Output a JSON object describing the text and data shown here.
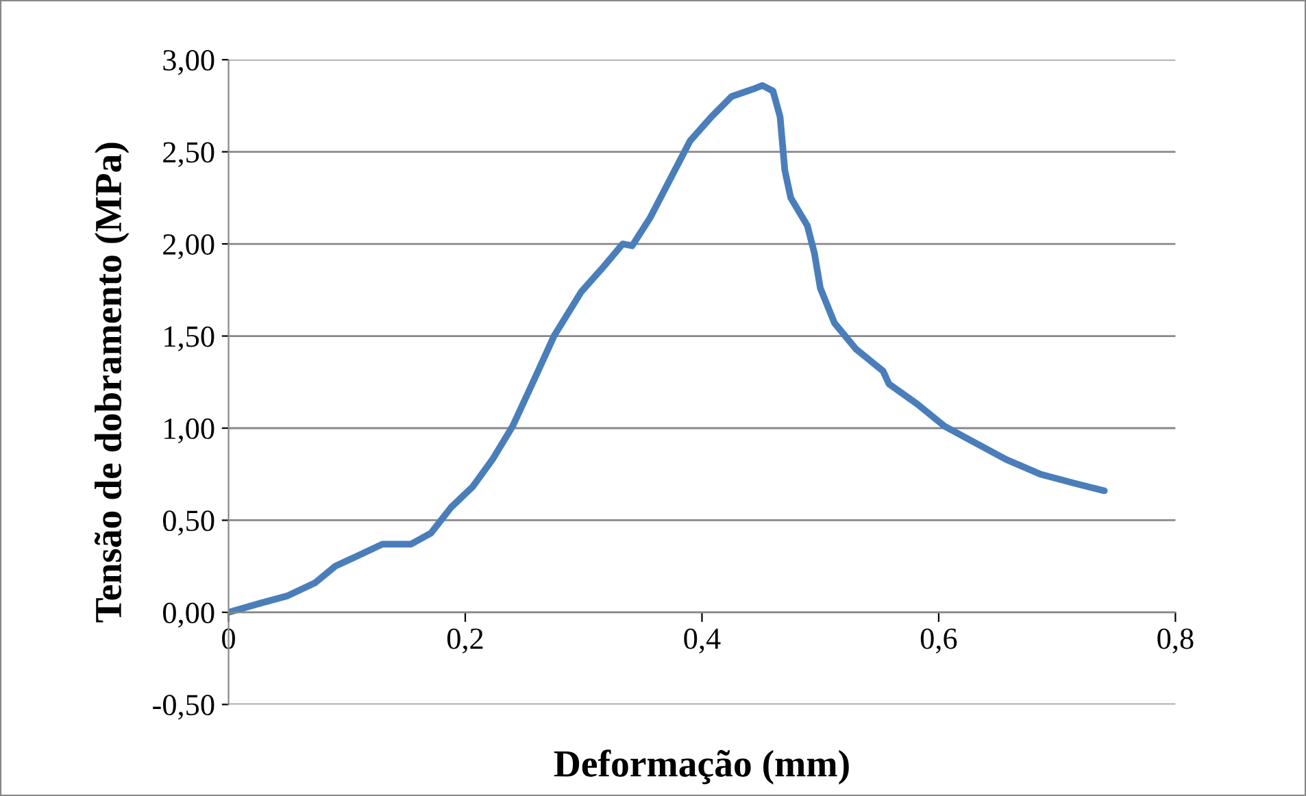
{
  "chart_data": {
    "type": "line",
    "xlabel": "Deformação (mm)",
    "ylabel": "Tensão de dobramento (MPa)",
    "x": [
      0,
      0.027,
      0.05,
      0.073,
      0.09,
      0.11,
      0.13,
      0.154,
      0.171,
      0.188,
      0.206,
      0.223,
      0.24,
      0.258,
      0.275,
      0.298,
      0.316,
      0.333,
      0.341,
      0.356,
      0.373,
      0.39,
      0.408,
      0.425,
      0.443,
      0.451,
      0.46,
      0.466,
      0.47,
      0.475,
      0.489,
      0.495,
      0.5,
      0.512,
      0.53,
      0.553,
      0.558,
      0.582,
      0.605,
      0.628,
      0.657,
      0.686,
      0.715,
      0.74
    ],
    "series": [
      {
        "color": "#4a7ebb",
        "values": [
          0,
          0.05,
          0.09,
          0.16,
          0.25,
          0.31,
          0.37,
          0.37,
          0.43,
          0.57,
          0.68,
          0.83,
          1.01,
          1.26,
          1.5,
          1.74,
          1.87,
          2.0,
          1.99,
          2.14,
          2.35,
          2.56,
          2.69,
          2.8,
          2.84,
          2.86,
          2.83,
          2.69,
          2.4,
          2.25,
          2.1,
          1.95,
          1.76,
          1.57,
          1.43,
          1.31,
          1.24,
          1.13,
          1.01,
          0.93,
          0.83,
          0.75,
          0.7,
          0.66
        ]
      }
    ],
    "xlim": [
      0,
      0.8
    ],
    "ylim": [
      -0.5,
      3.0
    ],
    "xticks": [
      {
        "value": 0,
        "label": "0"
      },
      {
        "value": 0.2,
        "label": "0,2"
      },
      {
        "value": 0.4,
        "label": "0,4"
      },
      {
        "value": 0.6,
        "label": "0,6"
      },
      {
        "value": 0.8,
        "label": "0,8"
      }
    ],
    "yticks": [
      {
        "value": -0.5,
        "label": "-0,50"
      },
      {
        "value": 0,
        "label": "0,00"
      },
      {
        "value": 0.5,
        "label": "0,50"
      },
      {
        "value": 1.0,
        "label": "1,00"
      },
      {
        "value": 1.5,
        "label": "1,50"
      },
      {
        "value": 2.0,
        "label": "2,00"
      },
      {
        "value": 2.5,
        "label": "2,50"
      },
      {
        "value": 3.0,
        "label": "3,00"
      }
    ],
    "grid": "y",
    "marker": "none",
    "line_style": "solid"
  }
}
